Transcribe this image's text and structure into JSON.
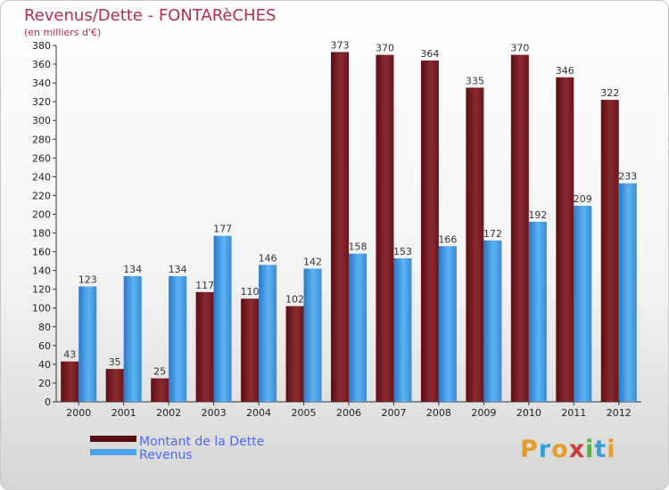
{
  "chart_data": {
    "type": "bar",
    "title": "Revenus/Dette - FONTARèCHES",
    "subtitle": "(en milliers d'€)",
    "categories": [
      "2000",
      "2001",
      "2002",
      "2003",
      "2004",
      "2005",
      "2006",
      "2007",
      "2008",
      "2009",
      "2010",
      "2011",
      "2012"
    ],
    "series": [
      {
        "name": "Montant de la Dette",
        "color": "#7a1f25",
        "values": [
          43,
          35,
          25,
          117,
          110,
          102,
          373,
          370,
          364,
          335,
          370,
          346,
          322
        ]
      },
      {
        "name": "Revenus",
        "color": "#4aa3e8",
        "values": [
          123,
          134,
          134,
          177,
          146,
          142,
          158,
          153,
          166,
          172,
          192,
          209,
          233
        ]
      }
    ],
    "ylim": [
      0,
      380
    ],
    "yticks": [
      0,
      20,
      40,
      60,
      80,
      100,
      120,
      140,
      160,
      180,
      200,
      220,
      240,
      260,
      280,
      300,
      320,
      340,
      360,
      380
    ],
    "grid": false,
    "legend": "bottom-left"
  },
  "logo": {
    "text": "Proxiti",
    "colors": [
      "#e89a2a",
      "#3aa0d8",
      "#e89a2a",
      "#d03a3a",
      "#5ab04a",
      "#3aa0d8",
      "#e89a2a"
    ]
  }
}
